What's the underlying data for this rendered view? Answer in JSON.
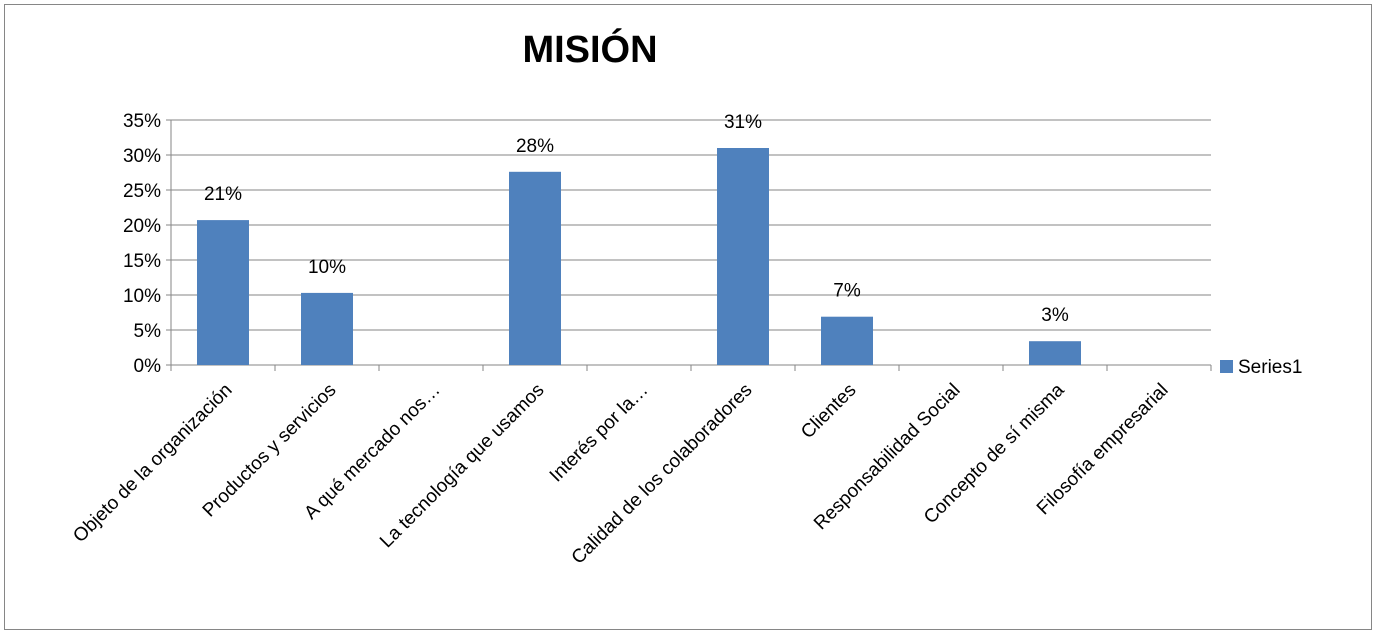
{
  "chart_data": {
    "type": "bar",
    "title": "MISIÓN",
    "xlabel": "",
    "ylabel": "",
    "ylim": [
      0,
      0.35
    ],
    "yticks": [
      "0%",
      "5%",
      "10%",
      "15%",
      "20%",
      "25%",
      "30%",
      "35%"
    ],
    "grid": true,
    "legend_position": "right",
    "categories": [
      "Objeto de la organización",
      "Productos y servicios",
      "A qué mercado nos…",
      "La tecnología que usamos",
      "Interés por la…",
      "Calidad de los colaboradores",
      "Clientes",
      "Responsabilidad Social",
      "Concepto de sí misma",
      "Filosofía empresarial"
    ],
    "series": [
      {
        "name": "Series1",
        "color": "#4f81bd",
        "values": [
          0.207,
          0.103,
          0,
          0.276,
          0,
          0.31,
          0.069,
          0,
          0.034,
          0
        ],
        "data_labels": [
          "21%",
          "10%",
          "",
          "28%",
          "",
          "31%",
          "7%",
          "",
          "3%",
          ""
        ]
      }
    ]
  }
}
